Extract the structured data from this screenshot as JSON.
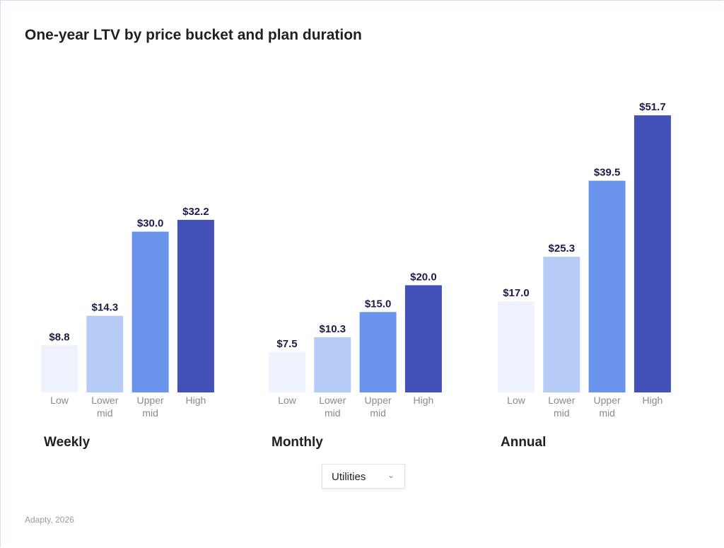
{
  "chart_data": {
    "type": "bar",
    "title": "One-year LTV by price bucket and plan duration",
    "groups": [
      "Weekly",
      "Monthly",
      "Annual"
    ],
    "categories": [
      "Low",
      "Lower mid",
      "Upper mid",
      "High"
    ],
    "category_colors": [
      "#eef3fd",
      "#b6cbf5",
      "#6a94eb",
      "#4250b8"
    ],
    "values": [
      [
        8.8,
        14.3,
        30.0,
        32.2
      ],
      [
        7.5,
        10.3,
        15.0,
        20.0
      ],
      [
        17.0,
        25.3,
        39.5,
        51.7
      ]
    ],
    "labels": [
      [
        "$8.8",
        "$14.3",
        "$30.0",
        "$32.2"
      ],
      [
        "$7.5",
        "$10.3",
        "$15.0",
        "$20.0"
      ],
      [
        "$17.0",
        "$25.3",
        "$39.5",
        "$51.7"
      ]
    ],
    "ylim": [
      0,
      55
    ],
    "grid": false
  },
  "filter": {
    "selected": "Utilities",
    "icon": "chevron-down-icon"
  },
  "source": "Adapty, 2026"
}
